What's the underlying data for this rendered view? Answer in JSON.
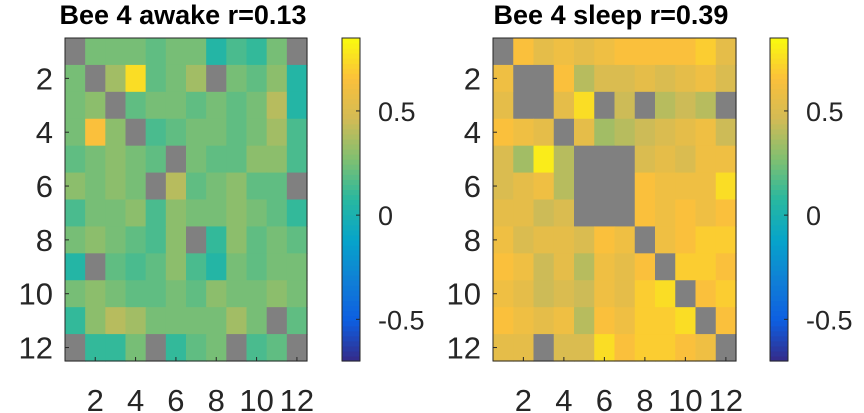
{
  "chart_data": [
    {
      "type": "heatmap",
      "title": "Bee 4 awake r=0.13",
      "x_ticks": [
        "2",
        "4",
        "6",
        "8",
        "10",
        "12"
      ],
      "y_ticks": [
        "2",
        "4",
        "6",
        "8",
        "10",
        "12"
      ],
      "xlim": [
        0.5,
        12.5
      ],
      "ylim": [
        0.5,
        12.5
      ],
      "grid": false,
      "colormap": "parula",
      "clim": [
        -0.7,
        0.85
      ],
      "colorbar_ticks": [
        "-0.5",
        "0",
        "0.5"
      ],
      "colorbar_tick_values": [
        -0.5,
        0,
        0.5
      ],
      "missing_color": "#808080",
      "values": [
        [
          null,
          0.25,
          0.25,
          0.25,
          0.2,
          0.25,
          0.25,
          0.05,
          0.15,
          0.1,
          0.25,
          null
        ],
        [
          0.25,
          null,
          0.35,
          0.75,
          0.2,
          0.25,
          0.35,
          null,
          0.25,
          0.2,
          0.3,
          0.05
        ],
        [
          0.25,
          0.3,
          null,
          0.2,
          0.25,
          0.25,
          0.2,
          0.25,
          0.2,
          0.25,
          0.4,
          0.05
        ],
        [
          0.25,
          0.65,
          0.3,
          null,
          0.15,
          0.2,
          0.25,
          0.25,
          0.2,
          0.25,
          0.35,
          0.15
        ],
        [
          0.2,
          0.25,
          0.3,
          0.25,
          0.2,
          null,
          0.25,
          0.2,
          0.2,
          0.3,
          0.3,
          0.15
        ],
        [
          0.3,
          0.25,
          0.3,
          0.25,
          null,
          0.4,
          0.2,
          0.25,
          0.3,
          0.2,
          0.2,
          null
        ],
        [
          0.15,
          0.25,
          0.25,
          0.3,
          0.15,
          0.3,
          0.25,
          0.25,
          0.3,
          0.25,
          0.2,
          0.1
        ],
        [
          0.25,
          0.3,
          0.25,
          0.2,
          0.15,
          0.3,
          null,
          0.1,
          0.3,
          0.2,
          0.25,
          0.2
        ],
        [
          0.05,
          null,
          0.2,
          0.15,
          0.2,
          0.3,
          0.15,
          0.05,
          0.25,
          0.2,
          0.25,
          0.25
        ],
        [
          0.25,
          0.3,
          0.25,
          0.2,
          0.2,
          0.25,
          0.2,
          0.3,
          0.25,
          0.25,
          0.3,
          0.25
        ],
        [
          0.1,
          0.3,
          0.4,
          0.35,
          0.25,
          0.25,
          0.25,
          0.25,
          0.35,
          0.25,
          null,
          0.2
        ],
        [
          null,
          0.1,
          0.1,
          0.25,
          null,
          0.1,
          0.2,
          0.25,
          null,
          0.15,
          0.2,
          null
        ]
      ]
    },
    {
      "type": "heatmap",
      "title": "Bee 4 sleep r=0.39",
      "x_ticks": [
        "2",
        "4",
        "6",
        "8",
        "10",
        "12"
      ],
      "y_ticks": [
        "2",
        "4",
        "6",
        "8",
        "10",
        "12"
      ],
      "xlim": [
        0.5,
        12.5
      ],
      "ylim": [
        0.5,
        12.5
      ],
      "grid": false,
      "colormap": "parula",
      "clim": [
        -0.7,
        0.85
      ],
      "colorbar_ticks": [
        "-0.5",
        "0",
        "0.5"
      ],
      "colorbar_tick_values": [
        -0.5,
        0,
        0.5
      ],
      "missing_color": "#808080",
      "values": [
        [
          null,
          0.65,
          0.55,
          0.6,
          0.55,
          0.6,
          0.65,
          0.65,
          0.65,
          0.65,
          0.7,
          0.55
        ],
        [
          0.6,
          null,
          null,
          0.65,
          0.4,
          0.5,
          0.5,
          0.55,
          0.5,
          0.55,
          0.6,
          0.5
        ],
        [
          0.55,
          null,
          null,
          0.55,
          0.75,
          null,
          0.45,
          null,
          0.4,
          0.45,
          0.4,
          null
        ],
        [
          0.65,
          0.6,
          0.55,
          null,
          0.55,
          0.35,
          0.4,
          0.45,
          0.5,
          0.55,
          0.6,
          0.45
        ],
        [
          0.5,
          0.35,
          0.8,
          0.4,
          null,
          null,
          null,
          0.5,
          0.55,
          0.5,
          0.6,
          0.6
        ],
        [
          0.5,
          0.55,
          0.6,
          0.4,
          null,
          null,
          null,
          0.65,
          0.6,
          0.6,
          0.6,
          0.75
        ],
        [
          0.55,
          0.55,
          0.45,
          0.5,
          null,
          null,
          null,
          0.65,
          0.6,
          0.65,
          0.6,
          0.65
        ],
        [
          0.6,
          0.5,
          0.55,
          0.55,
          0.5,
          0.65,
          0.6,
          null,
          0.6,
          0.65,
          0.7,
          0.7
        ],
        [
          0.65,
          0.6,
          0.45,
          0.55,
          0.4,
          0.6,
          0.55,
          0.65,
          null,
          0.7,
          0.7,
          0.65
        ],
        [
          0.6,
          0.55,
          0.45,
          0.5,
          0.45,
          0.6,
          0.55,
          0.7,
          0.75,
          null,
          0.65,
          0.7
        ],
        [
          0.65,
          0.6,
          0.55,
          0.6,
          0.4,
          0.65,
          0.6,
          0.7,
          0.7,
          0.75,
          null,
          0.65
        ],
        [
          0.55,
          0.55,
          null,
          0.5,
          0.5,
          0.75,
          0.65,
          0.7,
          0.7,
          0.65,
          0.6,
          null
        ]
      ]
    }
  ]
}
